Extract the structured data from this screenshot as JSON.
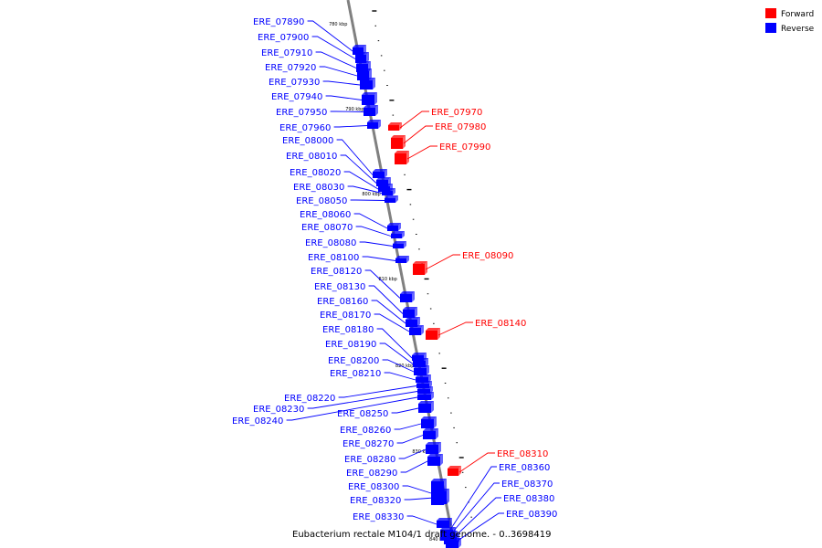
{
  "caption": "Eubacterium rectale M104/1 draft genome. - 0..3698419",
  "legend": [
    {
      "label": "Forward",
      "color": "#ff0000"
    },
    {
      "label": "Reverse",
      "color": "#0000ff"
    }
  ],
  "colors": {
    "forward": "#ff0000",
    "reverse": "#0000ff",
    "backbone": "#808080"
  },
  "scale_labels": [
    "780 kbp",
    "790 kbp",
    "800 kbp",
    "810 kbp",
    "820 kbp",
    "830 kbp",
    "840 kbp"
  ],
  "genes": [
    {
      "name": "ERE_07890",
      "strand": "reverse"
    },
    {
      "name": "ERE_07900",
      "strand": "reverse"
    },
    {
      "name": "ERE_07910",
      "strand": "reverse"
    },
    {
      "name": "ERE_07920",
      "strand": "reverse"
    },
    {
      "name": "ERE_07930",
      "strand": "reverse"
    },
    {
      "name": "ERE_07940",
      "strand": "reverse"
    },
    {
      "name": "ERE_07950",
      "strand": "reverse"
    },
    {
      "name": "ERE_07960",
      "strand": "reverse"
    },
    {
      "name": "ERE_07970",
      "strand": "forward"
    },
    {
      "name": "ERE_07980",
      "strand": "forward"
    },
    {
      "name": "ERE_07990",
      "strand": "forward"
    },
    {
      "name": "ERE_08000",
      "strand": "reverse"
    },
    {
      "name": "ERE_08010",
      "strand": "reverse"
    },
    {
      "name": "ERE_08020",
      "strand": "reverse"
    },
    {
      "name": "ERE_08030",
      "strand": "reverse"
    },
    {
      "name": "ERE_08050",
      "strand": "reverse"
    },
    {
      "name": "ERE_08060",
      "strand": "reverse"
    },
    {
      "name": "ERE_08070",
      "strand": "reverse"
    },
    {
      "name": "ERE_08080",
      "strand": "reverse"
    },
    {
      "name": "ERE_08090",
      "strand": "forward"
    },
    {
      "name": "ERE_08100",
      "strand": "reverse"
    },
    {
      "name": "ERE_08120",
      "strand": "reverse"
    },
    {
      "name": "ERE_08130",
      "strand": "reverse"
    },
    {
      "name": "ERE_08140",
      "strand": "forward"
    },
    {
      "name": "ERE_08160",
      "strand": "reverse"
    },
    {
      "name": "ERE_08170",
      "strand": "reverse"
    },
    {
      "name": "ERE_08180",
      "strand": "reverse"
    },
    {
      "name": "ERE_08190",
      "strand": "reverse"
    },
    {
      "name": "ERE_08200",
      "strand": "reverse"
    },
    {
      "name": "ERE_08210",
      "strand": "reverse"
    },
    {
      "name": "ERE_08220",
      "strand": "reverse"
    },
    {
      "name": "ERE_08230",
      "strand": "reverse"
    },
    {
      "name": "ERE_08240",
      "strand": "reverse"
    },
    {
      "name": "ERE_08250",
      "strand": "reverse"
    },
    {
      "name": "ERE_08260",
      "strand": "reverse"
    },
    {
      "name": "ERE_08270",
      "strand": "reverse"
    },
    {
      "name": "ERE_08280",
      "strand": "reverse"
    },
    {
      "name": "ERE_08290",
      "strand": "reverse"
    },
    {
      "name": "ERE_08300",
      "strand": "reverse"
    },
    {
      "name": "ERE_08310",
      "strand": "forward"
    },
    {
      "name": "ERE_08320",
      "strand": "reverse"
    },
    {
      "name": "ERE_08330",
      "strand": "reverse"
    },
    {
      "name": "ERE_08360",
      "strand": "reverse"
    },
    {
      "name": "ERE_08370",
      "strand": "reverse"
    },
    {
      "name": "ERE_08380",
      "strand": "reverse"
    },
    {
      "name": "ERE_08390",
      "strand": "reverse"
    }
  ]
}
